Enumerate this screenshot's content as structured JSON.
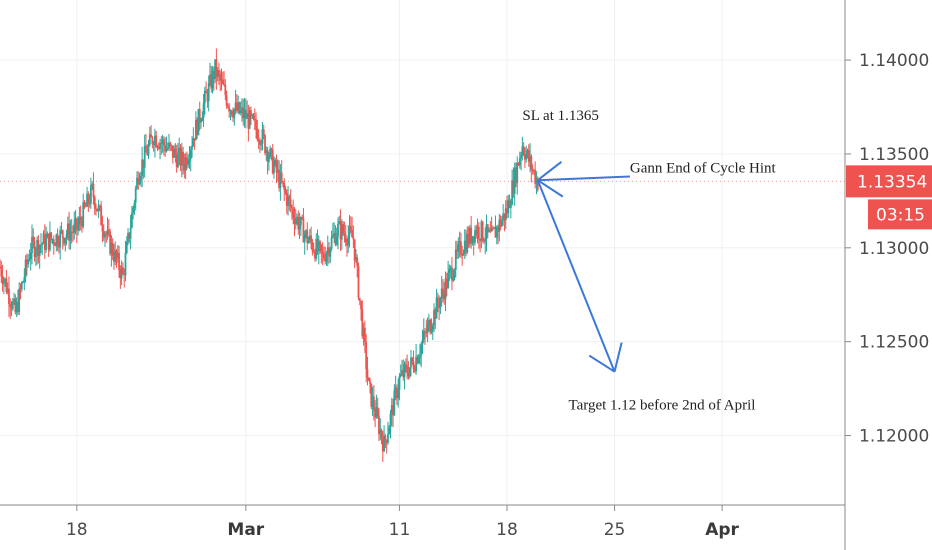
{
  "colors": {
    "up": "#26a69a",
    "down": "#ef5350",
    "grid": "#eef0f3",
    "axis": "#8a8a8a",
    "annotation_line": "#3b78d8",
    "price_badge": "#ef5350"
  },
  "chart_data": {
    "type": "candlestick",
    "instrument": "",
    "y_axis": {
      "ylim": [
        1.1163,
        1.1432
      ],
      "ticks": [
        1.12,
        1.125,
        1.13,
        1.135,
        1.14
      ],
      "tick_labels": [
        "1.12000",
        "1.12500",
        "1.13000",
        "1.13500",
        "1.14000"
      ],
      "position": "right"
    },
    "x_axis": {
      "start": "2019-02-13",
      "end": "2019-04-09",
      "ticks": [
        "2019-02-18",
        "2019-03-01",
        "2019-03-11",
        "2019-03-18",
        "2019-03-25",
        "2019-04-01"
      ],
      "tick_labels": [
        "18",
        "Mar",
        "11",
        "18",
        "25",
        "Apr"
      ],
      "major_ticks": [
        "Mar",
        "Apr"
      ]
    },
    "grid": true,
    "current_price": {
      "value": 1.13354,
      "label": "1.13354",
      "countdown": "03:15"
    },
    "price_path": [
      [
        "2019-02-13",
        1.129
      ],
      [
        "2019-02-14",
        1.1265
      ],
      [
        "2019-02-15",
        1.13
      ],
      [
        "2019-02-18",
        1.131
      ],
      [
        "2019-02-19",
        1.133
      ],
      [
        "2019-02-20",
        1.1305
      ],
      [
        "2019-02-21",
        1.1285
      ],
      [
        "2019-02-22",
        1.134
      ],
      [
        "2019-02-23",
        1.136
      ],
      [
        "2019-02-25",
        1.1345
      ],
      [
        "2019-02-26",
        1.137
      ],
      [
        "2019-02-27",
        1.1395
      ],
      [
        "2019-02-28",
        1.1375
      ],
      [
        "2019-03-01",
        1.137
      ],
      [
        "2019-03-02",
        1.136
      ],
      [
        "2019-03-04",
        1.132
      ],
      [
        "2019-03-05",
        1.1305
      ],
      [
        "2019-03-06",
        1.1295
      ],
      [
        "2019-03-07",
        1.131
      ],
      [
        "2019-03-08",
        1.1305
      ],
      [
        "2019-03-09",
        1.1225
      ],
      [
        "2019-03-10",
        1.1195
      ],
      [
        "2019-03-11",
        1.123
      ],
      [
        "2019-03-12",
        1.124
      ],
      [
        "2019-03-13",
        1.126
      ],
      [
        "2019-03-14",
        1.128
      ],
      [
        "2019-03-15",
        1.13
      ],
      [
        "2019-03-16",
        1.131
      ],
      [
        "2019-03-17",
        1.1305
      ],
      [
        "2019-03-18",
        1.132
      ],
      [
        "2019-03-19",
        1.1355
      ],
      [
        "2019-03-20",
        1.1335
      ]
    ],
    "annotations": [
      {
        "text": "SL at 1.1365",
        "x": "2019-03-19",
        "y": 1.1368
      },
      {
        "text": "Gann End of Cycle Hint",
        "x": "2019-03-26",
        "y": 1.134
      },
      {
        "text": "Target  1.12 before 2nd of April",
        "x": "2019-03-22",
        "y": 1.1214
      }
    ],
    "arrows": [
      {
        "from": [
          "2019-03-20",
          1.1336
        ],
        "to": [
          "2019-03-25",
          1.1234
        ]
      },
      {
        "from": [
          "2019-03-26",
          1.1338
        ],
        "to": [
          "2019-03-20",
          1.1336
        ]
      }
    ]
  }
}
